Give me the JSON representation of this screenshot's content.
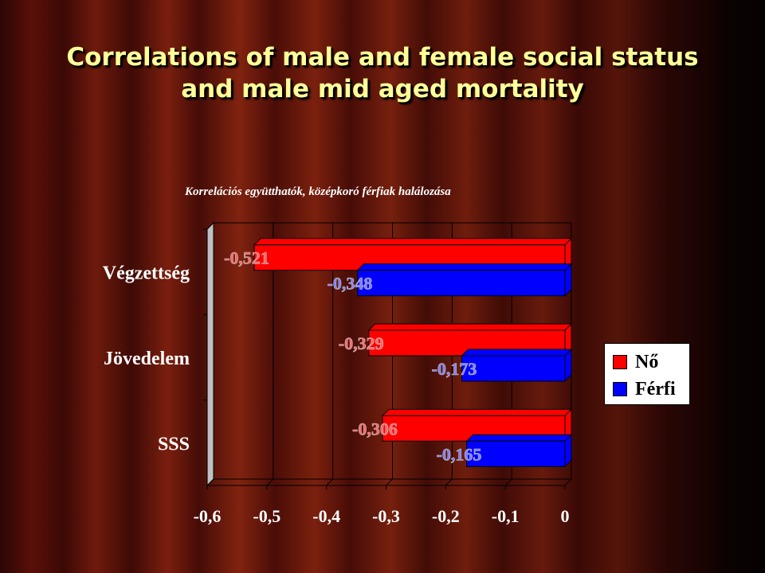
{
  "title": {
    "line1": "Correlations of male and female social status",
    "line2": "and male mid aged mortality"
  },
  "chart_data": {
    "type": "bar",
    "orientation": "horizontal",
    "subtitle": "Korrelációs együtthatók, középkoró férfiak halálozása",
    "categories": [
      "Végzettség",
      "Jövedelem",
      "SSS"
    ],
    "series": [
      {
        "name": "Nő",
        "color": "#ff0000",
        "values": [
          -0.521,
          -0.329,
          -0.306
        ],
        "labels": [
          "-0,521",
          "-0,329",
          "-0,306"
        ]
      },
      {
        "name": "Férfi",
        "color": "#0000ff",
        "values": [
          -0.348,
          -0.173,
          -0.165
        ],
        "labels": [
          "-0,348",
          "-0,173",
          "-0,165"
        ]
      }
    ],
    "xlim": [
      -0.6,
      0
    ],
    "xticks": [
      "-0,6",
      "-0,5",
      "-0,4",
      "-0,3",
      "-0,2",
      "-0,1",
      "0"
    ],
    "grid": true,
    "legend_position": "right"
  }
}
